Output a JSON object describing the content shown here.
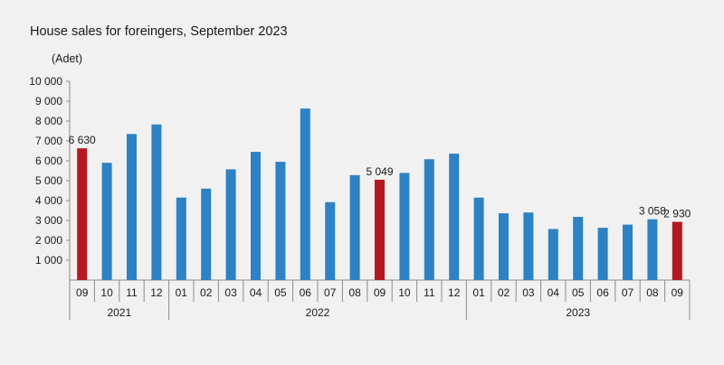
{
  "chart_data": {
    "type": "bar",
    "title": "House sales for foreingers, September 2023",
    "ylabel": "(Adet)",
    "ylim": [
      0,
      10000
    ],
    "yticks": [
      1000,
      2000,
      3000,
      4000,
      5000,
      6000,
      7000,
      8000,
      9000,
      10000
    ],
    "ytick_labels": [
      "1 000",
      "2 000",
      "3 000",
      "4 000",
      "5 000",
      "6 000",
      "7 000",
      "8 000",
      "9 000",
      "10 000"
    ],
    "categories": [
      "09",
      "10",
      "11",
      "12",
      "01",
      "02",
      "03",
      "04",
      "05",
      "06",
      "07",
      "08",
      "09",
      "10",
      "11",
      "12",
      "01",
      "02",
      "03",
      "04",
      "05",
      "06",
      "07",
      "08",
      "09"
    ],
    "values": [
      6630,
      5900,
      7350,
      7830,
      4150,
      4600,
      5570,
      6450,
      5950,
      8630,
      3920,
      5280,
      5049,
      5390,
      6080,
      6360,
      4150,
      3360,
      3400,
      2570,
      3180,
      2630,
      2790,
      3058,
      2930
    ],
    "highlight_indices": [
      0,
      12,
      24
    ],
    "data_labels": [
      {
        "index": 0,
        "text": "6 630"
      },
      {
        "index": 12,
        "text": "5 049"
      },
      {
        "index": 23,
        "text": "3 058"
      },
      {
        "index": 24,
        "text": "2 930"
      }
    ],
    "year_groups": [
      {
        "label": "2021",
        "start": 0,
        "count": 4
      },
      {
        "label": "2022",
        "start": 4,
        "count": 12
      },
      {
        "label": "2023",
        "start": 16,
        "count": 9
      }
    ],
    "colors": {
      "bar": "#2b82c6",
      "highlight": "#b7181e",
      "axis": "#8c8c8c"
    },
    "grid": false,
    "legend": "none"
  }
}
